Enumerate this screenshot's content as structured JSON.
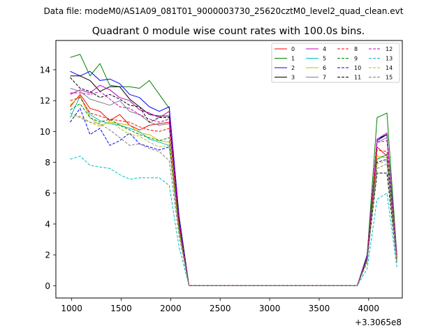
{
  "chart_data": {
    "type": "line",
    "suptitle": "Data file: modeM0/AS1A09_081T01_9000003730_25620cztM0_level2_quad_clean.evt",
    "title": "Quadrant 0 module wise count rates with 100.0s bins.",
    "xlabel": "",
    "ylabel": "",
    "x_offset_label": "+3.3065e8",
    "xlim": [
      840,
      4340
    ],
    "ylim": [
      -0.8,
      15.9
    ],
    "x_ticks": [
      1000,
      1500,
      2000,
      2500,
      3000,
      3500,
      4000
    ],
    "y_ticks": [
      0,
      2,
      4,
      6,
      8,
      10,
      12,
      14
    ],
    "legend_location": "upper-right",
    "legend_columns": 4,
    "x": [
      985,
      1085,
      1185,
      1285,
      1385,
      1485,
      1585,
      1685,
      1785,
      1885,
      1985,
      2085,
      2185,
      3885,
      3985,
      4085,
      4185,
      4285
    ],
    "series": [
      {
        "name": "0",
        "color": "#ff0000",
        "style": "solid",
        "values": [
          11.6,
          12.4,
          11.5,
          11.3,
          10.7,
          11.1,
          10.4,
          10.1,
          10.4,
          10.5,
          10.6,
          4.0,
          0,
          0,
          1.9,
          9.0,
          8.4,
          1.8
        ]
      },
      {
        "name": "1",
        "color": "#008000",
        "style": "solid",
        "values": [
          14.8,
          15.0,
          13.6,
          14.4,
          13.0,
          12.9,
          12.9,
          12.8,
          13.3,
          12.4,
          11.5,
          4.5,
          0,
          0,
          2.0,
          10.9,
          11.2,
          2.0
        ]
      },
      {
        "name": "2",
        "color": "#0000ff",
        "style": "solid",
        "values": [
          13.9,
          13.6,
          13.9,
          13.3,
          13.4,
          13.1,
          12.4,
          12.2,
          11.6,
          11.3,
          11.6,
          4.5,
          0,
          0,
          2.0,
          9.4,
          9.8,
          2.0
        ]
      },
      {
        "name": "3",
        "color": "#000000",
        "style": "solid",
        "values": [
          13.6,
          13.6,
          13.3,
          12.6,
          12.9,
          12.9,
          12.1,
          11.6,
          11.1,
          11.0,
          11.0,
          4.3,
          0,
          0,
          1.9,
          9.5,
          9.8,
          1.9
        ]
      },
      {
        "name": "4",
        "color": "#bf00bf",
        "style": "solid",
        "values": [
          12.4,
          12.7,
          12.5,
          13.0,
          12.7,
          12.2,
          12.0,
          11.4,
          11.2,
          10.9,
          11.3,
          4.3,
          0,
          0,
          1.9,
          9.5,
          9.9,
          1.9
        ]
      },
      {
        "name": "5",
        "color": "#00bfbf",
        "style": "solid",
        "values": [
          10.9,
          12.3,
          11.1,
          10.7,
          10.5,
          10.4,
          10.2,
          10.0,
          9.5,
          9.3,
          9.1,
          3.6,
          0,
          0,
          1.7,
          8.2,
          8.5,
          1.6
        ]
      },
      {
        "name": "6",
        "color": "#bfbf00",
        "style": "solid",
        "values": [
          11.7,
          12.3,
          10.9,
          10.4,
          10.6,
          10.5,
          10.4,
          9.9,
          9.8,
          9.4,
          9.3,
          3.7,
          0,
          0,
          1.8,
          8.4,
          8.3,
          1.7
        ]
      },
      {
        "name": "7",
        "color": "#808080",
        "style": "solid",
        "values": [
          12.8,
          12.6,
          12.1,
          11.9,
          11.7,
          12.0,
          11.3,
          11.1,
          10.6,
          10.4,
          10.5,
          4.1,
          0,
          0,
          1.9,
          9.3,
          9.6,
          1.9
        ]
      },
      {
        "name": "8",
        "color": "#ff0000",
        "style": "dashed",
        "values": [
          12.0,
          12.2,
          11.2,
          11.0,
          10.8,
          10.7,
          10.6,
          10.3,
          10.1,
          10.0,
          10.2,
          3.9,
          0,
          0,
          1.8,
          8.8,
          8.7,
          1.8
        ]
      },
      {
        "name": "9",
        "color": "#008000",
        "style": "dashed",
        "values": [
          11.4,
          11.8,
          10.9,
          10.6,
          10.8,
          10.4,
          10.1,
          9.8,
          9.6,
          9.4,
          9.6,
          3.7,
          0,
          0,
          1.8,
          8.2,
          8.5,
          1.7
        ]
      },
      {
        "name": "10",
        "color": "#0000ff",
        "style": "dashed",
        "values": [
          10.6,
          11.5,
          9.8,
          10.2,
          9.1,
          9.4,
          9.9,
          9.2,
          9.0,
          8.8,
          9.0,
          3.5,
          0,
          0,
          1.6,
          8.0,
          8.2,
          1.6
        ]
      },
      {
        "name": "11",
        "color": "#000000",
        "style": "dashed",
        "values": [
          13.5,
          12.8,
          12.6,
          12.2,
          12.4,
          12.1,
          11.7,
          11.6,
          10.6,
          10.9,
          10.9,
          4.2,
          0,
          0,
          1.8,
          7.3,
          7.3,
          1.5
        ]
      },
      {
        "name": "12",
        "color": "#bf00bf",
        "style": "dashed",
        "values": [
          12.5,
          12.5,
          12.4,
          12.6,
          12.1,
          11.6,
          11.5,
          11.1,
          10.8,
          10.6,
          10.8,
          4.1,
          0,
          0,
          1.9,
          9.3,
          9.4,
          1.9
        ]
      },
      {
        "name": "13",
        "color": "#00bfbf",
        "style": "dashed",
        "values": [
          8.2,
          8.4,
          7.8,
          7.7,
          7.6,
          7.2,
          6.9,
          7.0,
          7.0,
          7.0,
          6.5,
          2.5,
          0,
          0,
          1.1,
          5.6,
          6.0,
          1.2
        ]
      },
      {
        "name": "14",
        "color": "#bfbf00",
        "style": "dashed",
        "values": [
          11.0,
          11.0,
          10.6,
          10.3,
          10.7,
          10.2,
          9.8,
          9.7,
          9.3,
          9.0,
          9.1,
          3.5,
          0,
          0,
          1.6,
          7.9,
          8.1,
          1.6
        ]
      },
      {
        "name": "15",
        "color": "#808080",
        "style": "dashed",
        "values": [
          11.2,
          10.9,
          10.6,
          10.5,
          10.1,
          9.6,
          9.1,
          9.2,
          8.9,
          8.7,
          8.1,
          3.2,
          0,
          0,
          1.5,
          7.6,
          7.9,
          1.5
        ]
      }
    ]
  }
}
